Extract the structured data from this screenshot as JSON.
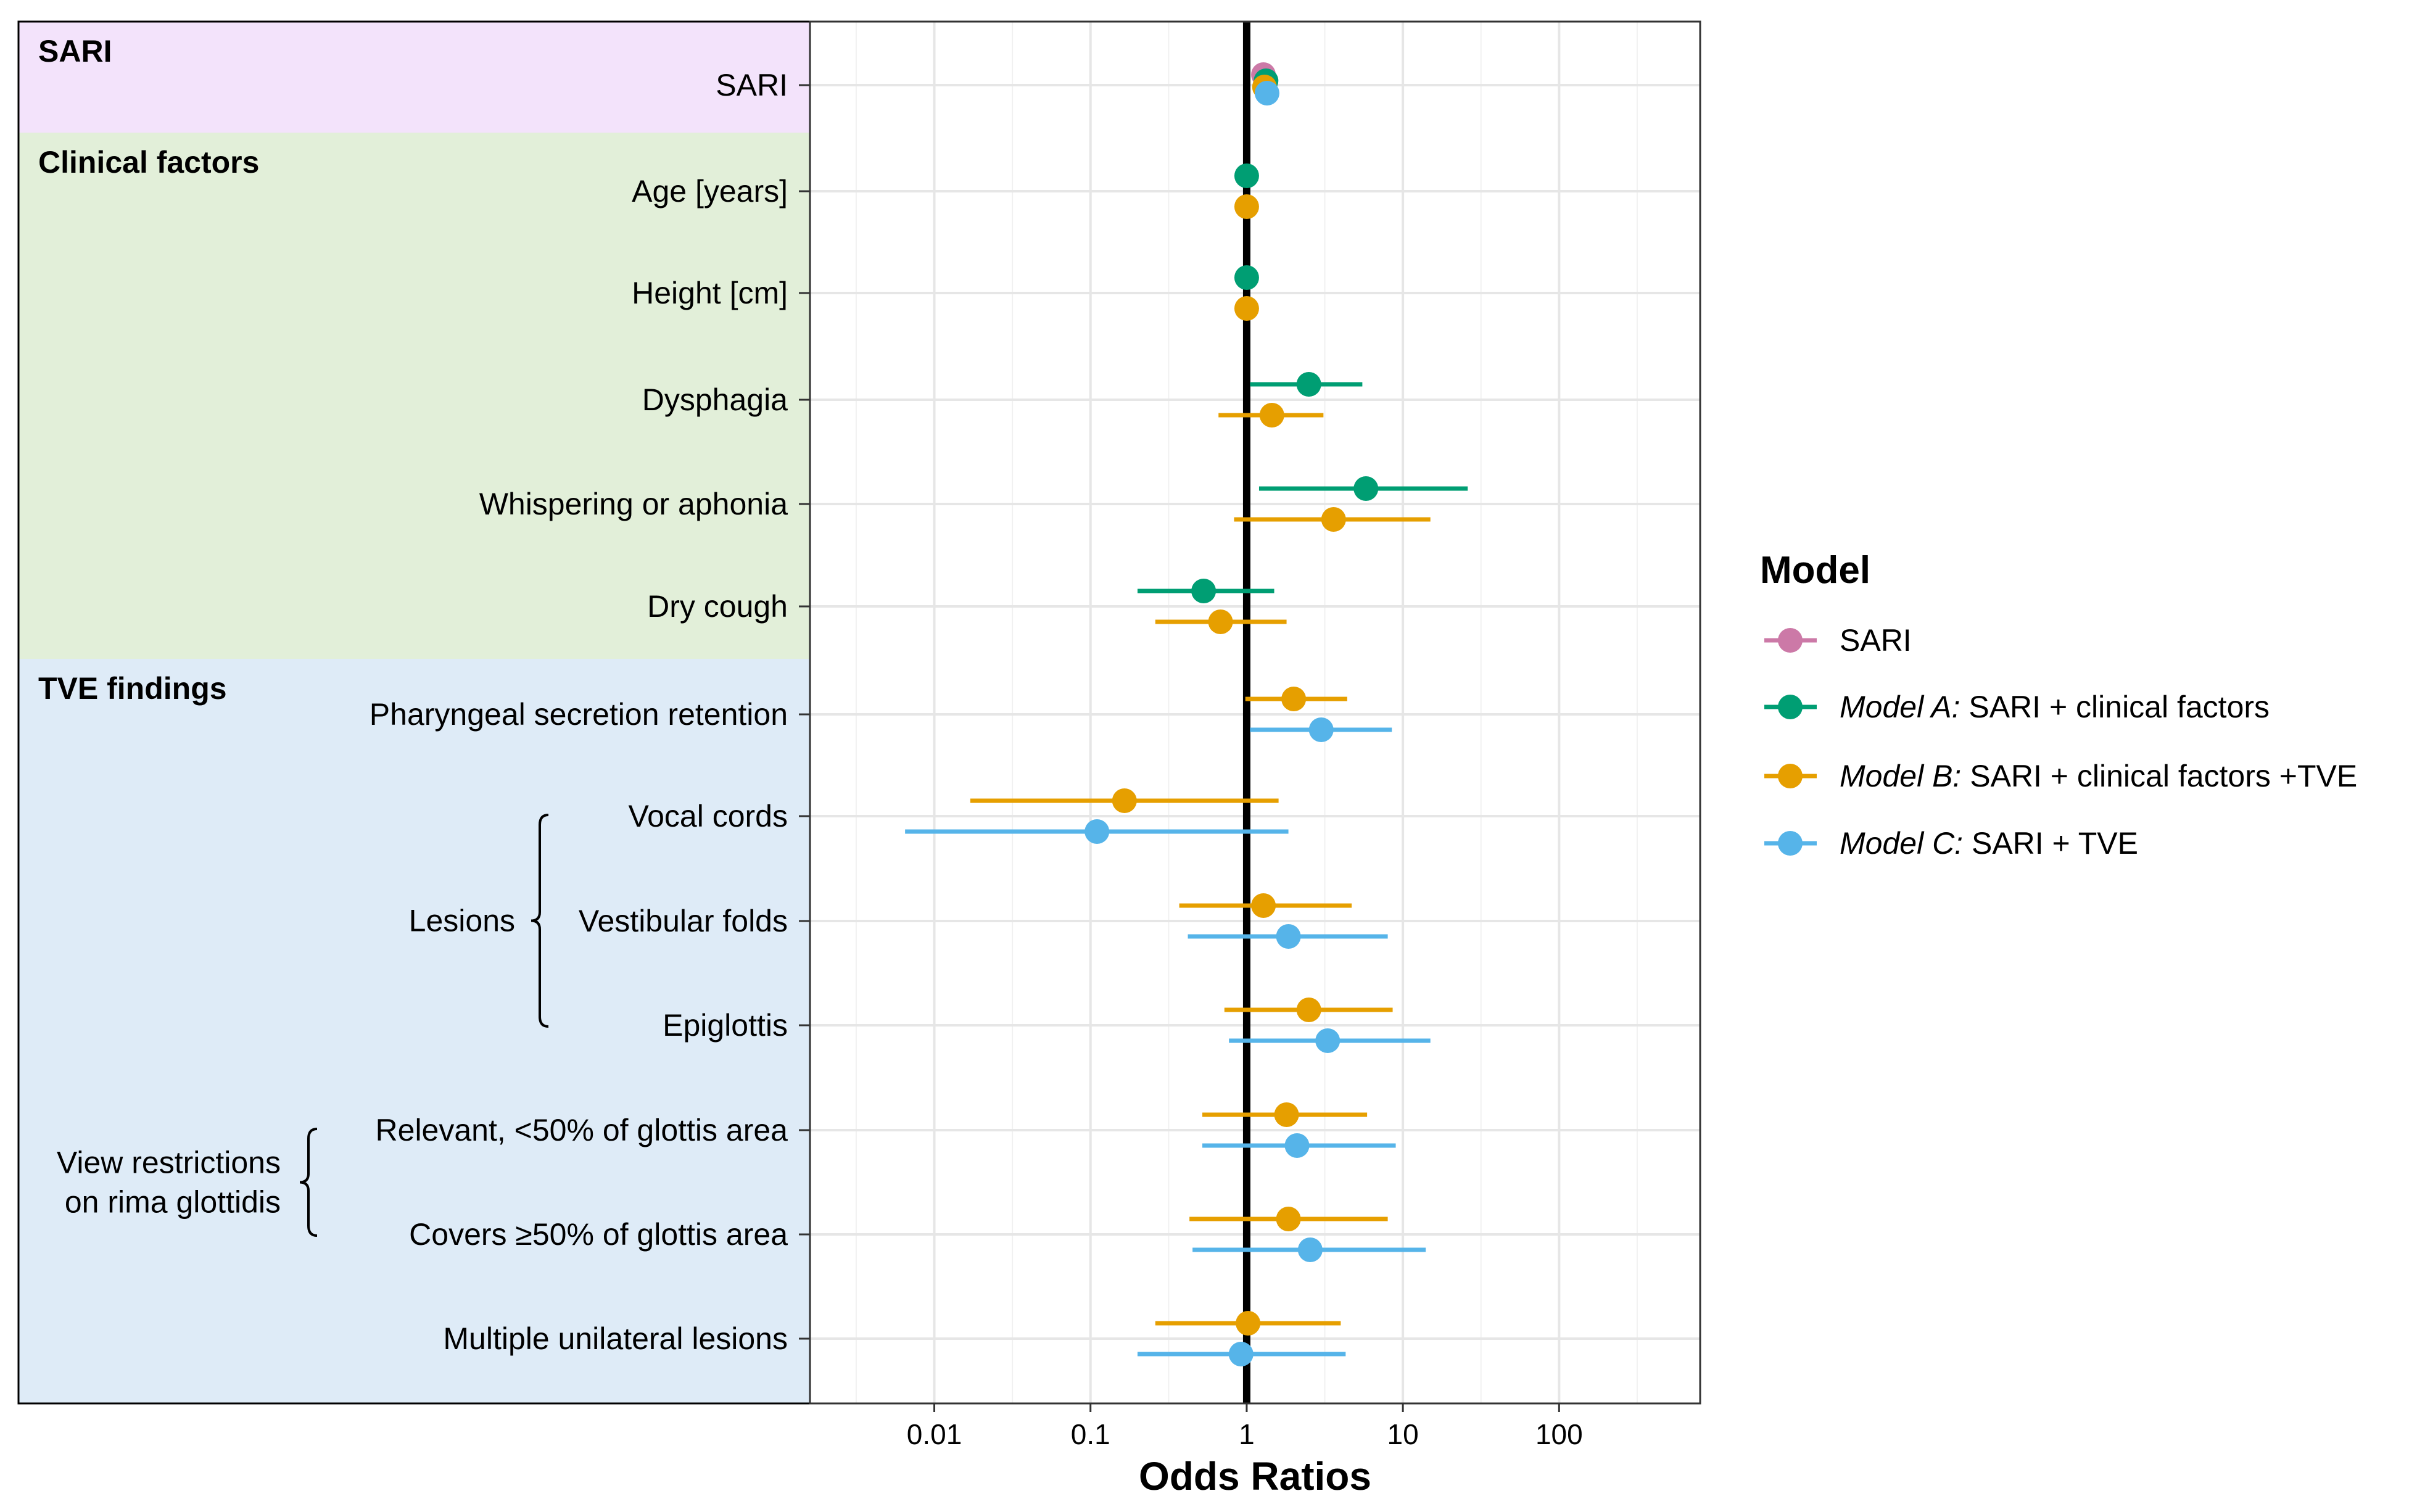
{
  "chart_data": {
    "type": "scatter",
    "subtype": "forest-plot",
    "title": "",
    "xlabel": "Odds Ratios",
    "ylabel": "",
    "x_scale": "log10",
    "xlim": [
      0.0016,
      800
    ],
    "x_ticks": [
      0.01,
      0.1,
      1,
      10,
      100
    ],
    "x_tick_labels": [
      "0.01",
      "0.1",
      "1",
      "10",
      "100"
    ],
    "reference_line": 1,
    "grid": true,
    "legend_position": "right",
    "legend_title": "Model",
    "groups": [
      {
        "name": "SARI",
        "color": "#f3e3fb",
        "rows": [
          0
        ]
      },
      {
        "name": "Clinical factors",
        "color": "#e2efd9",
        "rows": [
          1,
          2,
          3,
          4,
          5
        ]
      },
      {
        "name": "TVE findings",
        "color": "#deebf7",
        "rows": [
          6,
          7,
          8,
          9,
          10,
          11,
          12
        ]
      }
    ],
    "rows": [
      {
        "label": "SARI"
      },
      {
        "label": "Age [years]"
      },
      {
        "label": "Height [cm]"
      },
      {
        "label": "Dysphagia"
      },
      {
        "label": "Whispering or aphonia"
      },
      {
        "label": "Dry cough"
      },
      {
        "label": "Pharyngeal secretion retention"
      },
      {
        "label": "Vocal cords"
      },
      {
        "label": "Vestibular folds"
      },
      {
        "label": "Epiglottis"
      },
      {
        "label": "Relevant, <50% of glottis area"
      },
      {
        "label": "Covers ≥50% of glottis area"
      },
      {
        "label": "Multiple unilateral lesions"
      }
    ],
    "brackets": [
      {
        "label_lines": [
          "Lesions"
        ],
        "rows": [
          7,
          8,
          9
        ]
      },
      {
        "label_lines": [
          "View restrictions",
          "on rima glottidis"
        ],
        "rows": [
          10,
          11
        ]
      }
    ],
    "series": [
      {
        "name": "SARI",
        "italic_prefix": "",
        "rest": "SARI",
        "color": "#cc79a7",
        "points": [
          {
            "row": 0,
            "or": 1.28,
            "lo": 1.22,
            "hi": 1.35
          }
        ]
      },
      {
        "name": "Model A: SARI + clinical factors",
        "italic_prefix": "Model A:",
        "rest": " SARI + clinical factors",
        "color": "#009e73",
        "points": [
          {
            "row": 0,
            "or": 1.33,
            "lo": 1.25,
            "hi": 1.42
          },
          {
            "row": 1,
            "or": 1.0,
            "lo": 0.97,
            "hi": 1.03
          },
          {
            "row": 2,
            "or": 1.0,
            "lo": 0.98,
            "hi": 1.02
          },
          {
            "row": 3,
            "or": 2.5,
            "lo": 1.05,
            "hi": 5.5
          },
          {
            "row": 4,
            "or": 5.8,
            "lo": 1.2,
            "hi": 26
          },
          {
            "row": 5,
            "or": 0.53,
            "lo": 0.2,
            "hi": 1.5
          }
        ]
      },
      {
        "name": "Model B: SARI + clinical factors +TVE",
        "italic_prefix": "Model B:",
        "rest": " SARI + clinical factors +TVE",
        "color": "#e69f00",
        "points": [
          {
            "row": 0,
            "or": 1.3,
            "lo": 1.22,
            "hi": 1.4
          },
          {
            "row": 1,
            "or": 1.0,
            "lo": 0.97,
            "hi": 1.03
          },
          {
            "row": 2,
            "or": 1.0,
            "lo": 0.98,
            "hi": 1.02
          },
          {
            "row": 3,
            "or": 1.45,
            "lo": 0.66,
            "hi": 3.1
          },
          {
            "row": 4,
            "or": 3.6,
            "lo": 0.83,
            "hi": 15
          },
          {
            "row": 5,
            "or": 0.68,
            "lo": 0.26,
            "hi": 1.8
          },
          {
            "row": 6,
            "or": 2.0,
            "lo": 0.98,
            "hi": 4.4
          },
          {
            "row": 7,
            "or": 0.165,
            "lo": 0.017,
            "hi": 1.6
          },
          {
            "row": 8,
            "or": 1.28,
            "lo": 0.37,
            "hi": 4.7
          },
          {
            "row": 9,
            "or": 2.5,
            "lo": 0.72,
            "hi": 8.6
          },
          {
            "row": 10,
            "or": 1.8,
            "lo": 0.52,
            "hi": 5.9
          },
          {
            "row": 11,
            "or": 1.85,
            "lo": 0.43,
            "hi": 8.0
          },
          {
            "row": 12,
            "or": 1.02,
            "lo": 0.26,
            "hi": 4.0
          }
        ]
      },
      {
        "name": "Model C: SARI + TVE",
        "italic_prefix": "Model C:",
        "rest": " SARI + TVE",
        "color": "#56b4e9",
        "points": [
          {
            "row": 0,
            "or": 1.35,
            "lo": 1.27,
            "hi": 1.44
          },
          {
            "row": 6,
            "or": 3.0,
            "lo": 1.05,
            "hi": 8.5
          },
          {
            "row": 7,
            "or": 0.11,
            "lo": 0.0065,
            "hi": 1.85
          },
          {
            "row": 8,
            "or": 1.85,
            "lo": 0.42,
            "hi": 8.0
          },
          {
            "row": 9,
            "or": 3.3,
            "lo": 0.77,
            "hi": 15
          },
          {
            "row": 10,
            "or": 2.1,
            "lo": 0.52,
            "hi": 9.0
          },
          {
            "row": 11,
            "or": 2.55,
            "lo": 0.45,
            "hi": 14
          },
          {
            "row": 12,
            "or": 0.92,
            "lo": 0.2,
            "hi": 4.3
          }
        ]
      }
    ]
  }
}
